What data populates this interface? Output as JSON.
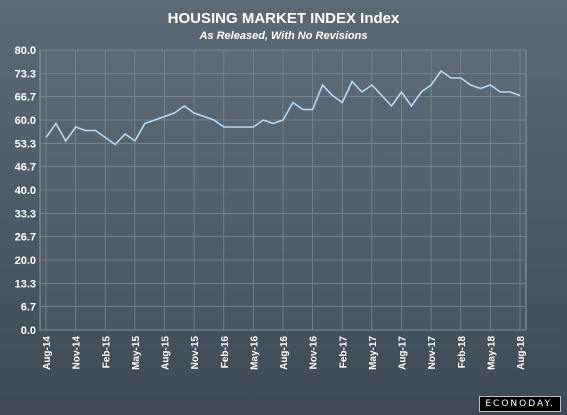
{
  "chart_data": {
    "type": "line",
    "title": "HOUSING MARKET INDEX Index",
    "subtitle": "As Released, With No Revisions",
    "xlabel": "",
    "ylabel": "",
    "ylim": [
      0,
      80
    ],
    "y_ticks": [
      "0.0",
      "6.7",
      "13.3",
      "20.0",
      "26.7",
      "33.3",
      "40.0",
      "46.7",
      "53.3",
      "60.0",
      "66.7",
      "73.3",
      "80.0"
    ],
    "x_tick_labels": [
      "Aug-14",
      "Nov-14",
      "Feb-15",
      "May-15",
      "Aug-15",
      "Nov-15",
      "Feb-16",
      "May-16",
      "Aug-16",
      "Nov-16",
      "Feb-17",
      "May-17",
      "Aug-17",
      "Nov-17",
      "Feb-18",
      "May-18",
      "Aug-18"
    ],
    "grid": true,
    "series": [
      {
        "color": "#b9d6f2",
        "values": [
          55,
          59,
          54,
          58,
          57,
          57,
          55,
          53,
          56,
          54,
          59,
          60,
          61,
          62,
          64,
          62,
          61,
          60,
          58,
          58,
          58,
          58,
          60,
          59,
          60,
          65,
          63,
          63,
          70,
          67,
          65,
          71,
          68,
          70,
          67,
          64,
          68,
          64,
          68,
          70,
          74,
          72,
          72,
          70,
          69,
          70,
          68,
          68,
          67
        ]
      }
    ]
  },
  "branding": {
    "label": "ECONODAY."
  }
}
